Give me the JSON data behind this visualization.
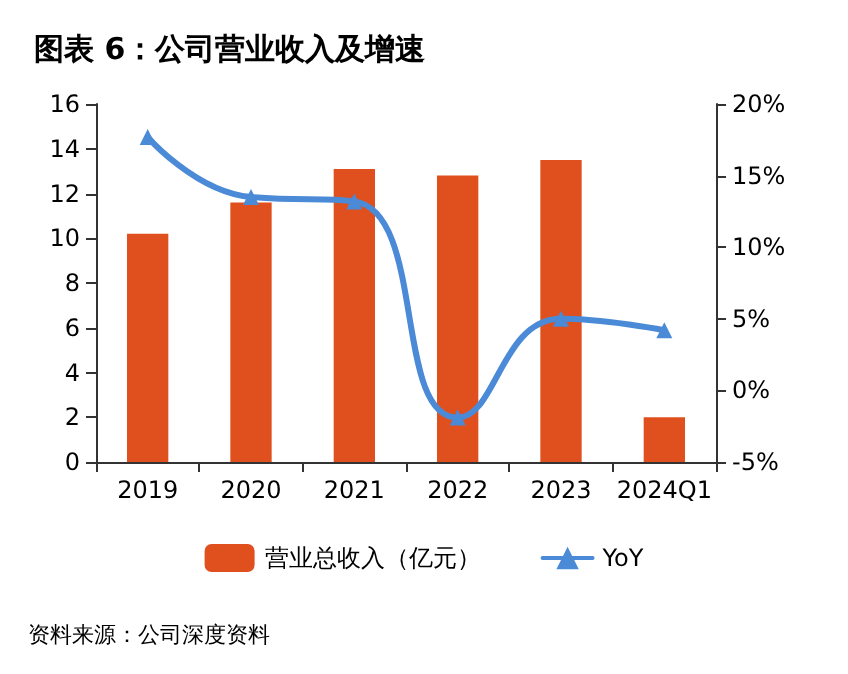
{
  "chart_data": {
    "type": "bar",
    "title": "图表 6：公司营业收入及增速",
    "categories": [
      "2019",
      "2020",
      "2021",
      "2022",
      "2023",
      "2024Q1"
    ],
    "series": [
      {
        "name": "营业总收入（亿元）",
        "color": "#e0501e",
        "values": [
          10.2,
          11.6,
          13.1,
          12.8,
          13.5,
          2.0
        ]
      },
      {
        "name": "YoY",
        "type": "line",
        "axis": "y2",
        "color": "#4a8ad6",
        "marker": "triangle",
        "values": [
          17.7,
          13.5,
          13.2,
          -1.9,
          5.0,
          4.2
        ]
      }
    ],
    "ylim": [
      0,
      16
    ],
    "yticks": [
      0,
      2,
      4,
      6,
      8,
      10,
      12,
      14,
      16
    ],
    "y2lim": [
      -5,
      20
    ],
    "y2ticks": [
      {
        "value": -5,
        "label": "-5%"
      },
      {
        "value": 0,
        "label": "0%"
      },
      {
        "value": 5,
        "label": "5%"
      },
      {
        "value": 10,
        "label": "10%"
      },
      {
        "value": 15,
        "label": "15%"
      },
      {
        "value": 20,
        "label": "20%"
      }
    ],
    "grid": false,
    "legend": "bottom",
    "annotations": [
      "资料来源：公司深度资料"
    ]
  }
}
